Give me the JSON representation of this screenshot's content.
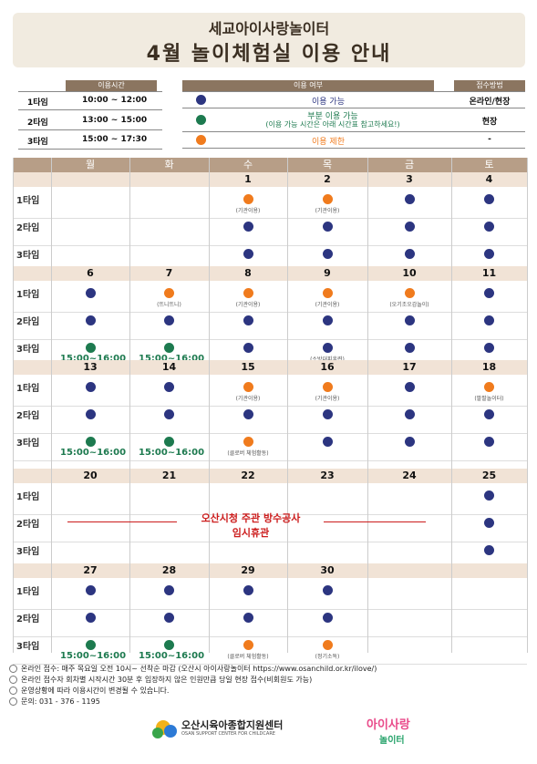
{
  "header": {
    "subtitle": "세교아이사랑놀이터",
    "title": "4월 놀이체험실 이용 안내"
  },
  "times": {
    "header": "이용시간",
    "rows": [
      {
        "label": "1타임",
        "value": "10:00 ~ 12:00"
      },
      {
        "label": "2타임",
        "value": "13:00 ~ 15:00"
      },
      {
        "label": "3타임",
        "value": "15:00 ~ 17:30"
      }
    ]
  },
  "legend": {
    "header": "이용 여부",
    "method_header": "접수방법",
    "rows": [
      {
        "text": "이용 가능",
        "method": "온라인/현장",
        "color": "#2c3580"
      },
      {
        "text": "부분 이용 가능",
        "text2": "(이용 가능 시간은 아래 시간표 참고하세요!)",
        "method": "현장",
        "color": "#1d7a4f"
      },
      {
        "text": "이용 제한",
        "method": "-",
        "color": "#f07b1d"
      }
    ]
  },
  "calendar": {
    "days": [
      "월",
      "화",
      "수",
      "목",
      "금",
      "토"
    ],
    "slots": [
      "1타임",
      "2타임",
      "3타임"
    ],
    "weeks": [
      {
        "dates": [
          "",
          "",
          "1",
          "2",
          "3",
          "4"
        ]
      },
      {
        "dates": [
          "6",
          "7",
          "8",
          "9",
          "10",
          "11"
        ]
      },
      {
        "dates": [
          "13",
          "14",
          "15",
          "16",
          "17",
          "18"
        ]
      },
      {
        "dates": [
          "20",
          "21",
          "22",
          "23",
          "24",
          "25"
        ]
      },
      {
        "dates": [
          "27",
          "28",
          "29",
          "30",
          "",
          ""
        ]
      }
    ],
    "notes": {
      "gigwan": "(기관이용)",
      "ttoni": "(뜨니뜨니)",
      "ogijo": "(오기조오감놀이)",
      "sobang": "(소방대피훈련)",
      "palpal": "(팔팔놀이터)",
      "club": "(클로버 체험활동)",
      "jeonggi": "(정기소독)",
      "partial_time": "15:00~16:00"
    },
    "closure_line1": "오산시청 주관 방수공사",
    "closure_line2": "임시휴관"
  },
  "footer": {
    "lines": [
      "온라인 접수: 매주 목요일 오전 10시~ 선착순 마감 (오산시 아이사랑놀이터 https://www.osanchild.or.kr/ilove/)",
      "온라인 접수자 회차별 시작시간 30분 후 입장하지 않은 인원만큼 당일 현장 접수(비회원도 가능)",
      "운영상황에 따라 이용시간이 변경될 수 있습니다.",
      "문의: 031 - 376 - 1195"
    ],
    "logo1_text": "오산시육아종합지원센터",
    "logo1_sub": "OSAN SUPPORT CENTER FOR CHILDCARE",
    "logo2_text": "아이사랑",
    "logo2_sub": "놀이터"
  }
}
